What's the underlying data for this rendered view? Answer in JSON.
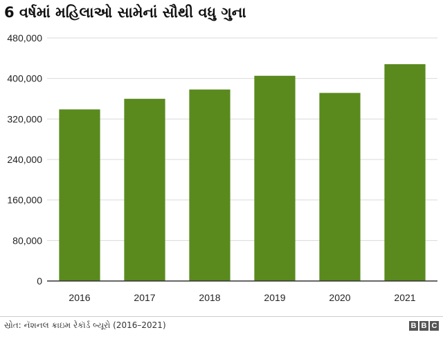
{
  "title": "6 વર્ષમાં મહિલાઓ સામેનાં સૌથી વધુ ગુના",
  "source": "સ્રોત: નૅશનલ ક્રાઇમ રેકૉર્ડ બ્યૂરો (2016–2021)",
  "logo": [
    "B",
    "B",
    "C"
  ],
  "colors": {
    "bar": "#5a8a1e",
    "grid": "#d9d9d9",
    "axis": "#333333"
  },
  "chart_data": {
    "type": "bar",
    "categories": [
      "2016",
      "2017",
      "2018",
      "2019",
      "2020",
      "2021"
    ],
    "values": [
      338954,
      359849,
      378236,
      405326,
      371503,
      428278
    ],
    "ylim": [
      0,
      480000
    ],
    "yticks": [
      0,
      80000,
      160000,
      240000,
      320000,
      400000,
      480000
    ],
    "ytick_labels": [
      "0",
      "80,000",
      "160,000",
      "240,000",
      "320,000",
      "400,000",
      "480,000"
    ],
    "grid": true,
    "legend": "none"
  }
}
